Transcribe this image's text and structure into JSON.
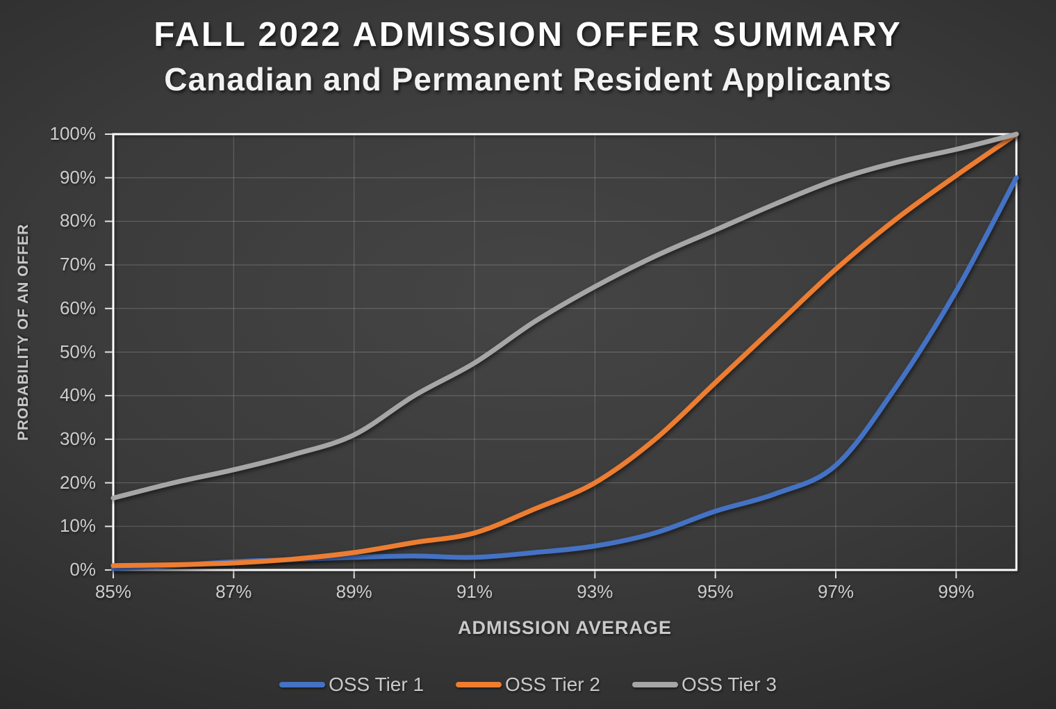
{
  "title": {
    "line1": "FALL 2022 ADMISSION OFFER SUMMARY",
    "line2": "Canadian and Permanent Resident Applicants"
  },
  "chart_data": {
    "type": "line",
    "x": [
      85,
      86,
      87,
      88,
      89,
      90,
      91,
      92,
      93,
      94,
      95,
      96,
      97,
      98,
      99,
      100
    ],
    "series": [
      {
        "name": "OSS Tier 1",
        "color": "#4472C4",
        "values": [
          0.3,
          1.0,
          1.9,
          2.4,
          2.9,
          3.2,
          2.9,
          4.0,
          5.5,
          8.5,
          13.5,
          17.5,
          24.0,
          42.0,
          64.0,
          90.0
        ]
      },
      {
        "name": "OSS Tier 2",
        "color": "#ED7D31",
        "values": [
          1.0,
          1.2,
          1.6,
          2.5,
          4.0,
          6.3,
          8.5,
          14.0,
          20.0,
          30.0,
          43.0,
          56.0,
          69.0,
          80.5,
          90.5,
          100.0
        ]
      },
      {
        "name": "OSS Tier 3",
        "color": "#A6A6A6",
        "values": [
          16.5,
          20.0,
          23.0,
          26.5,
          31.0,
          40.0,
          47.5,
          57.0,
          65.0,
          72.0,
          78.0,
          84.0,
          89.5,
          93.5,
          96.5,
          100.0
        ]
      }
    ],
    "xlabel": "ADMISSION AVERAGE",
    "ylabel": "PROBABILITY OF AN OFFER",
    "xlim": [
      85,
      100
    ],
    "ylim": [
      0,
      100
    ],
    "xticks": [
      "85%",
      "87%",
      "89%",
      "91%",
      "93%",
      "95%",
      "97%",
      "99%"
    ],
    "xtick_values": [
      85,
      87,
      89,
      91,
      93,
      95,
      97,
      99
    ],
    "yticks": [
      "0%",
      "10%",
      "20%",
      "30%",
      "40%",
      "50%",
      "60%",
      "70%",
      "80%",
      "90%",
      "100%"
    ],
    "ytick_values": [
      0,
      10,
      20,
      30,
      40,
      50,
      60,
      70,
      80,
      90,
      100
    ],
    "grid": true,
    "legend_position": "bottom"
  },
  "colors": {
    "background_center": "#454545",
    "background_edge": "#1d1d1d",
    "frame": "#ffffff",
    "gridline": "rgba(255,255,255,0.22)",
    "tick_label": "#cdcdcd",
    "axis_title": "#c9c9c9",
    "title_text": "#ffffff"
  }
}
